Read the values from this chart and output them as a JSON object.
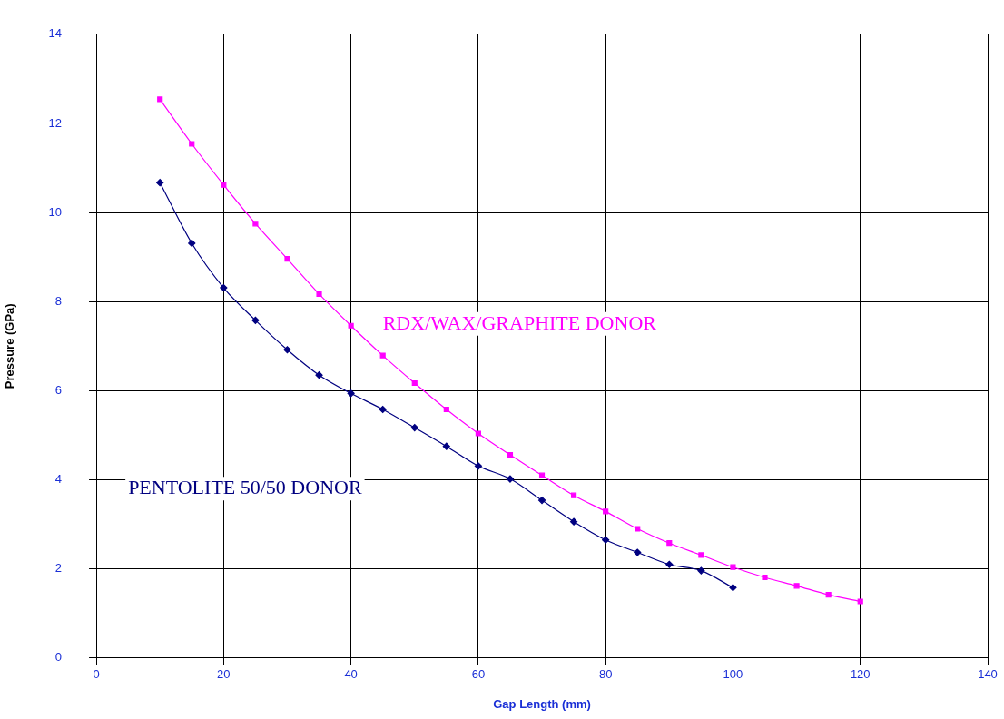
{
  "chart_data": {
    "type": "line",
    "xlabel": "Gap Length (mm)",
    "ylabel": "Pressure (GPa)",
    "xlim": [
      0,
      140
    ],
    "xticks": [
      0,
      20,
      40,
      60,
      80,
      100,
      120,
      140
    ],
    "ylim": [
      0,
      14
    ],
    "yticks": [
      0,
      2,
      4,
      6,
      8,
      10,
      12,
      14
    ],
    "grid": true,
    "legend": false,
    "series": [
      {
        "name": "RDX/WAX/GRAPHITE DONOR",
        "color": "#ff00ff",
        "marker": "square",
        "x": [
          10,
          15,
          20,
          25,
          30,
          35,
          40,
          45,
          50,
          55,
          60,
          65,
          70,
          75,
          80,
          85,
          90,
          95,
          100,
          105,
          110,
          115,
          120
        ],
        "values": [
          12.54,
          11.54,
          10.62,
          9.75,
          8.96,
          8.17,
          7.46,
          6.79,
          6.17,
          5.58,
          5.04,
          4.56,
          4.1,
          3.65,
          3.29,
          2.9,
          2.58,
          2.31,
          2.04,
          1.81,
          1.62,
          1.42,
          1.27
        ]
      },
      {
        "name": "PENTOLITE 50/50 DONOR",
        "color": "#000080",
        "marker": "diamond",
        "x": [
          10,
          15,
          20,
          25,
          30,
          35,
          40,
          45,
          50,
          55,
          60,
          65,
          70,
          75,
          80,
          85,
          90,
          95,
          100
        ],
        "values": [
          10.67,
          9.31,
          8.31,
          7.58,
          6.92,
          6.35,
          5.94,
          5.58,
          5.17,
          4.75,
          4.31,
          4.02,
          3.54,
          3.06,
          2.65,
          2.37,
          2.1,
          1.96,
          1.58
        ]
      }
    ]
  }
}
